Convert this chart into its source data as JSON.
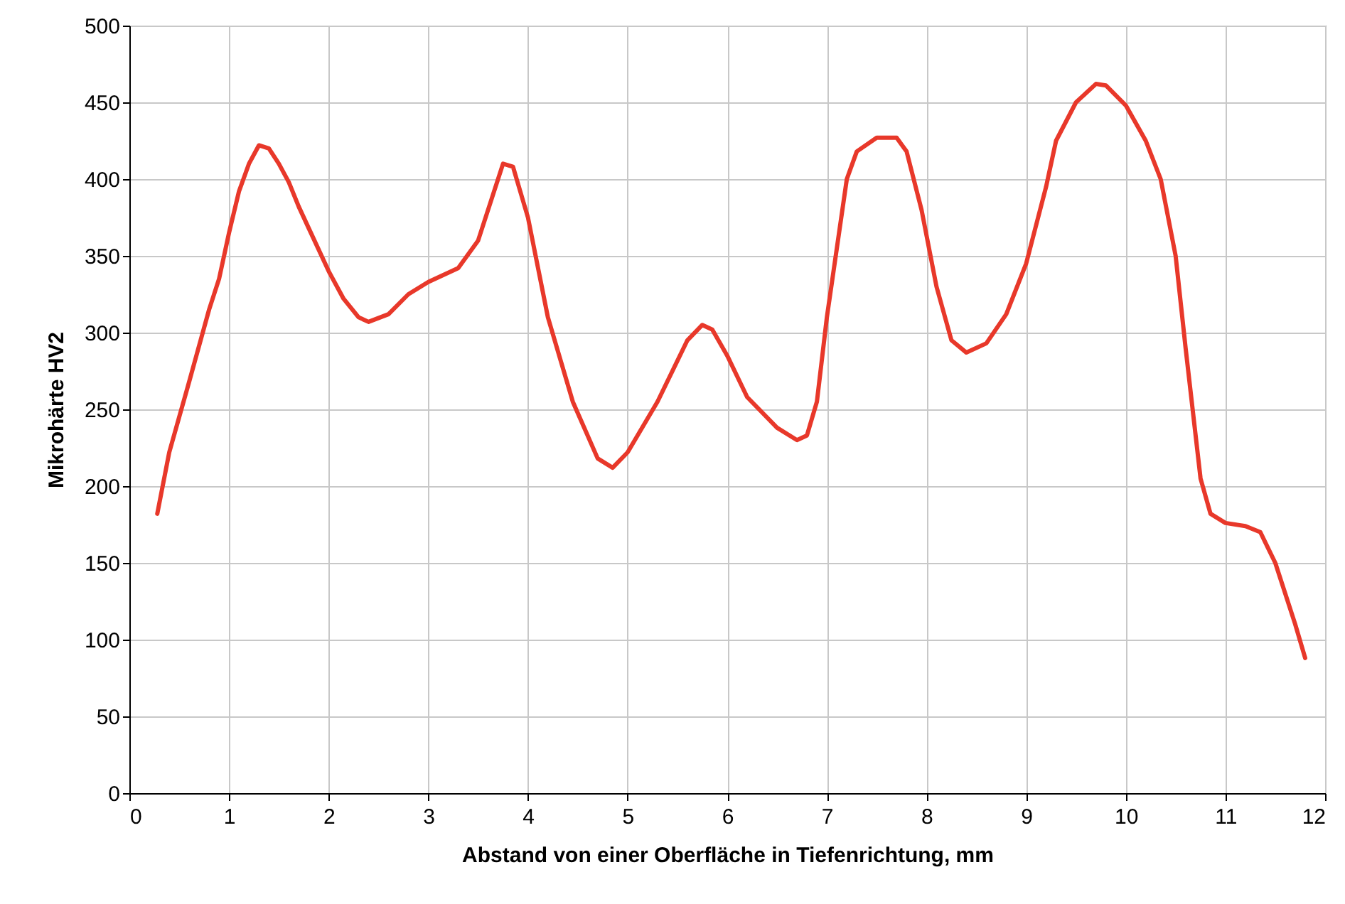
{
  "chart_data": {
    "type": "line",
    "xlabel": "Abstand von einer Oberfläche in Tiefenrichtung, mm",
    "ylabel": "Mikrohärte HV2",
    "xlim": [
      0,
      12
    ],
    "xticks": [
      0,
      1,
      2,
      3,
      4,
      5,
      6,
      7,
      8,
      9,
      10,
      11,
      12
    ],
    "ylim": [
      0,
      500
    ],
    "yticks": [
      0,
      50,
      100,
      150,
      200,
      250,
      300,
      350,
      400,
      450,
      500
    ],
    "grid": true,
    "marker": "none",
    "line_style": "solid",
    "x": [
      0.28,
      0.4,
      0.6,
      0.8,
      0.9,
      1.0,
      1.1,
      1.2,
      1.3,
      1.4,
      1.5,
      1.6,
      1.7,
      1.8,
      2.0,
      2.15,
      2.3,
      2.4,
      2.6,
      2.8,
      3.0,
      3.3,
      3.5,
      3.75,
      3.85,
      4.0,
      4.2,
      4.45,
      4.7,
      4.85,
      5.0,
      5.3,
      5.6,
      5.75,
      5.85,
      6.0,
      6.2,
      6.5,
      6.7,
      6.8,
      6.9,
      7.0,
      7.2,
      7.3,
      7.5,
      7.7,
      7.8,
      7.95,
      8.1,
      8.25,
      8.4,
      8.6,
      8.8,
      9.0,
      9.2,
      9.3,
      9.5,
      9.7,
      9.8,
      10.0,
      10.2,
      10.35,
      10.5,
      10.6,
      10.75,
      10.85,
      11.0,
      11.2,
      11.35,
      11.5,
      11.7,
      11.8
    ],
    "series": [
      {
        "color": "#e8382a",
        "values": [
          182,
          222,
          268,
          315,
          335,
          365,
          392,
          410,
          422,
          420,
          410,
          398,
          382,
          368,
          340,
          322,
          310,
          307,
          312,
          325,
          333,
          342,
          360,
          410,
          408,
          375,
          310,
          255,
          218,
          212,
          222,
          255,
          295,
          305,
          302,
          285,
          258,
          238,
          230,
          233,
          255,
          310,
          400,
          418,
          427,
          427,
          418,
          380,
          330,
          295,
          287,
          293,
          312,
          345,
          395,
          425,
          450,
          462,
          461,
          448,
          425,
          400,
          350,
          290,
          205,
          182,
          176,
          174,
          170,
          150,
          110,
          88
        ]
      }
    ]
  }
}
